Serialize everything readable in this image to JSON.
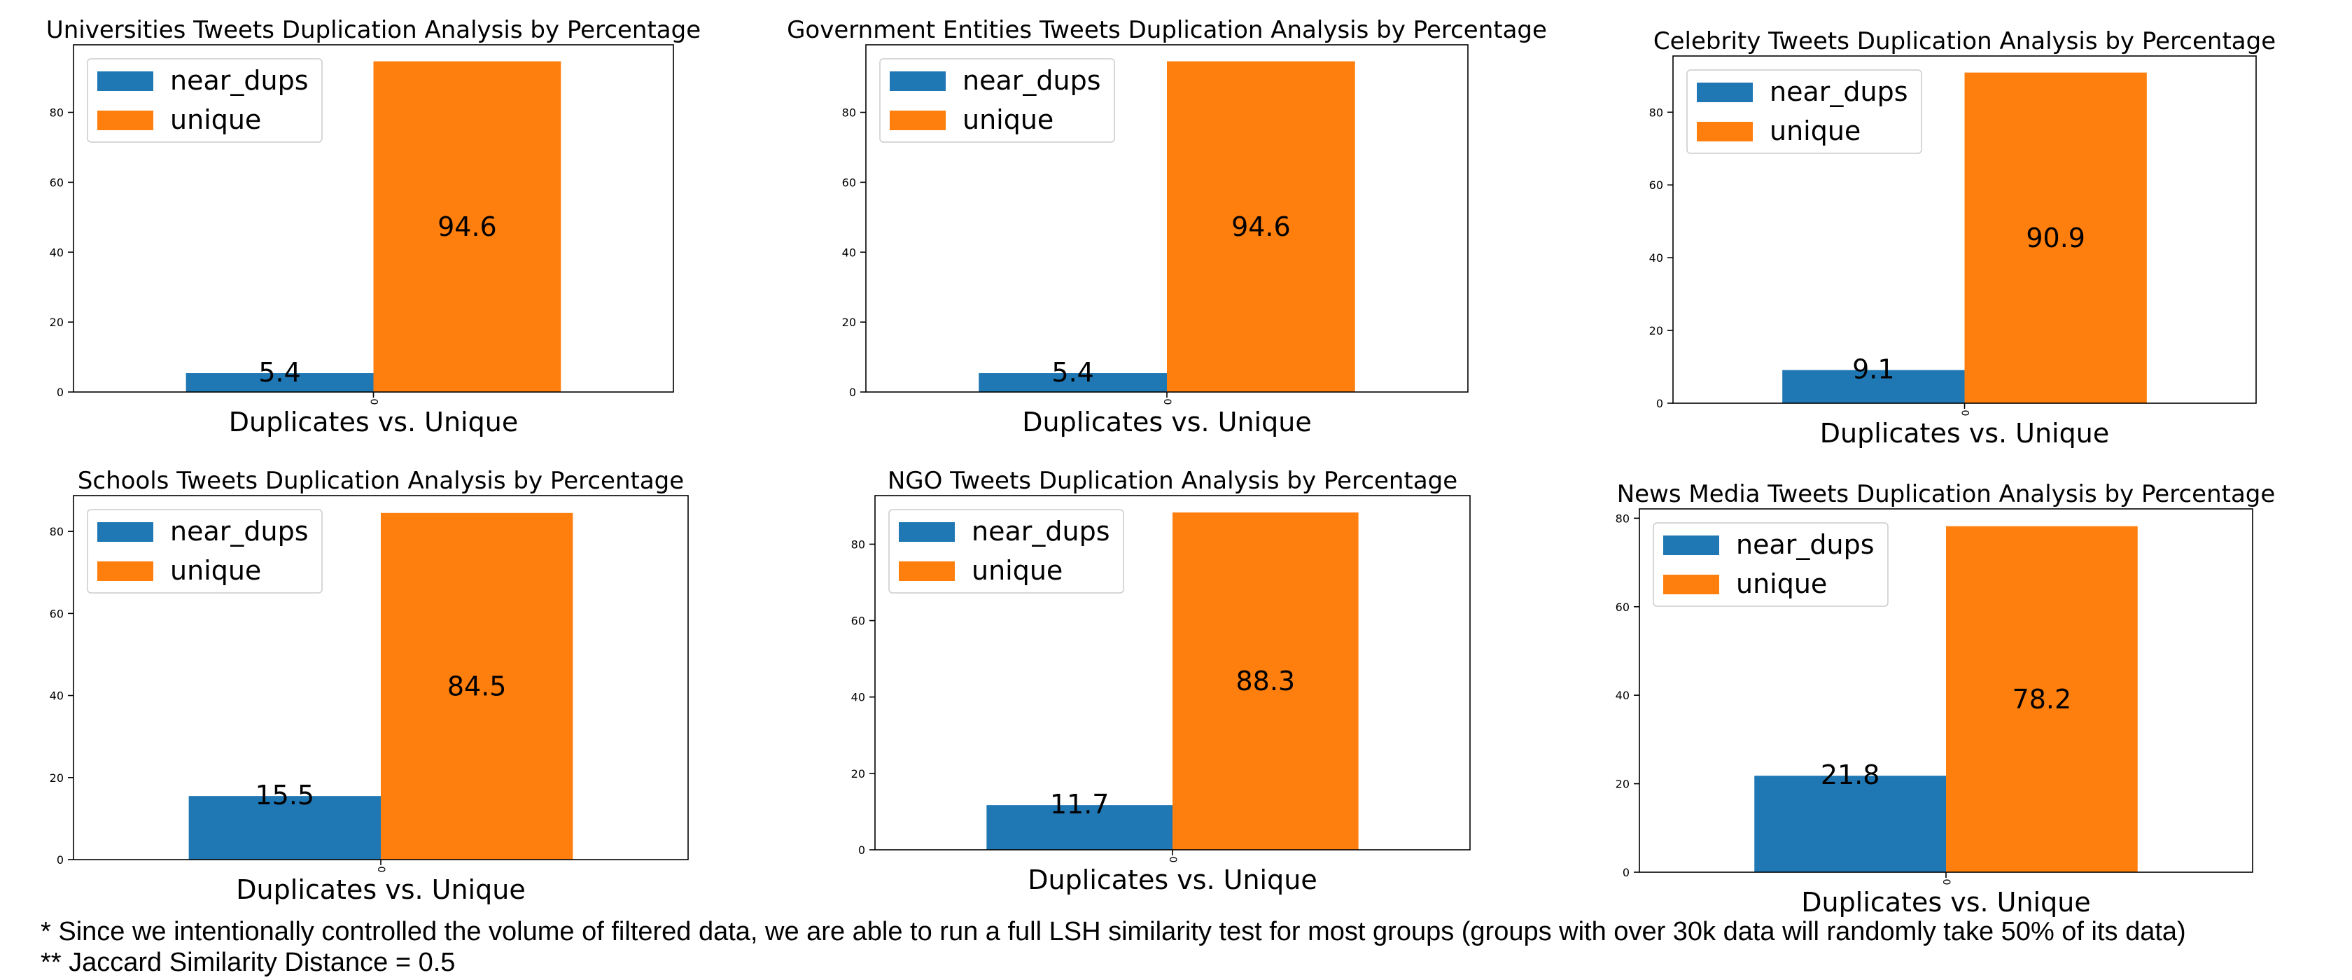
{
  "chart_data": [
    {
      "type": "bar",
      "title": "Universities Tweets Duplication Analysis by Percentage",
      "xlabel": "Duplicates vs. Unique",
      "categories": [
        "0"
      ],
      "series": [
        {
          "name": "near_dups",
          "values": [
            5.4
          ],
          "color": "#1f77b4",
          "data_label": "5.4"
        },
        {
          "name": "unique",
          "values": [
            94.6
          ],
          "color": "#ff7f0e",
          "data_label": "94.6"
        }
      ],
      "ylim": [
        0,
        99.33
      ],
      "yticks": [
        0,
        20,
        40,
        60,
        80
      ],
      "legend": "upper-left",
      "grid": false
    },
    {
      "type": "bar",
      "title": "Government Entities Tweets Duplication Analysis by Percentage",
      "xlabel": "Duplicates vs. Unique",
      "categories": [
        "0"
      ],
      "series": [
        {
          "name": "near_dups",
          "values": [
            5.4
          ],
          "color": "#1f77b4",
          "data_label": "5.4"
        },
        {
          "name": "unique",
          "values": [
            94.6
          ],
          "color": "#ff7f0e",
          "data_label": "94.6"
        }
      ],
      "ylim": [
        0,
        99.33
      ],
      "yticks": [
        0,
        20,
        40,
        60,
        80
      ],
      "legend": "upper-left",
      "grid": false
    },
    {
      "type": "bar",
      "title": "Celebrity Tweets Duplication Analysis by Percentage",
      "xlabel": "Duplicates vs. Unique",
      "categories": [
        "0"
      ],
      "series": [
        {
          "name": "near_dups",
          "values": [
            9.1
          ],
          "color": "#1f77b4",
          "data_label": "9.1"
        },
        {
          "name": "unique",
          "values": [
            90.9
          ],
          "color": "#ff7f0e",
          "data_label": "90.9"
        }
      ],
      "ylim": [
        0,
        95.45
      ],
      "yticks": [
        0,
        20,
        40,
        60,
        80
      ],
      "legend": "upper-left",
      "grid": false
    },
    {
      "type": "bar",
      "title": "Schools Tweets Duplication Analysis by Percentage",
      "xlabel": "Duplicates vs. Unique",
      "categories": [
        "0"
      ],
      "series": [
        {
          "name": "near_dups",
          "values": [
            15.5
          ],
          "color": "#1f77b4",
          "data_label": "15.5"
        },
        {
          "name": "unique",
          "values": [
            84.5
          ],
          "color": "#ff7f0e",
          "data_label": "84.5"
        }
      ],
      "ylim": [
        0,
        88.73
      ],
      "yticks": [
        0,
        20,
        40,
        60,
        80
      ],
      "legend": "upper-left",
      "grid": false
    },
    {
      "type": "bar",
      "title": "NGO Tweets Duplication Analysis by Percentage",
      "xlabel": "Duplicates vs. Unique",
      "categories": [
        "0"
      ],
      "series": [
        {
          "name": "near_dups",
          "values": [
            11.7
          ],
          "color": "#1f77b4",
          "data_label": "11.7"
        },
        {
          "name": "unique",
          "values": [
            88.3
          ],
          "color": "#ff7f0e",
          "data_label": "88.3"
        }
      ],
      "ylim": [
        0,
        92.72
      ],
      "yticks": [
        0,
        20,
        40,
        60,
        80
      ],
      "legend": "upper-left",
      "grid": false
    },
    {
      "type": "bar",
      "title": "News Media Tweets Duplication Analysis by Percentage",
      "xlabel": "Duplicates vs. Unique",
      "categories": [
        "0"
      ],
      "series": [
        {
          "name": "near_dups",
          "values": [
            21.8
          ],
          "color": "#1f77b4",
          "data_label": "21.8"
        },
        {
          "name": "unique",
          "values": [
            78.2
          ],
          "color": "#ff7f0e",
          "data_label": "78.2"
        }
      ],
      "ylim": [
        0,
        82.11
      ],
      "yticks": [
        0,
        20,
        40,
        60,
        80
      ],
      "legend": "upper-left",
      "grid": false
    }
  ],
  "footnotes": [
    "* Since we intentionally controlled the volume of filtered data, we are able to run a full LSH similarity test for most groups (groups with over 30k data will randomly take 50% of its data)",
    "** Jaccard Similarity Distance = 0.5"
  ]
}
